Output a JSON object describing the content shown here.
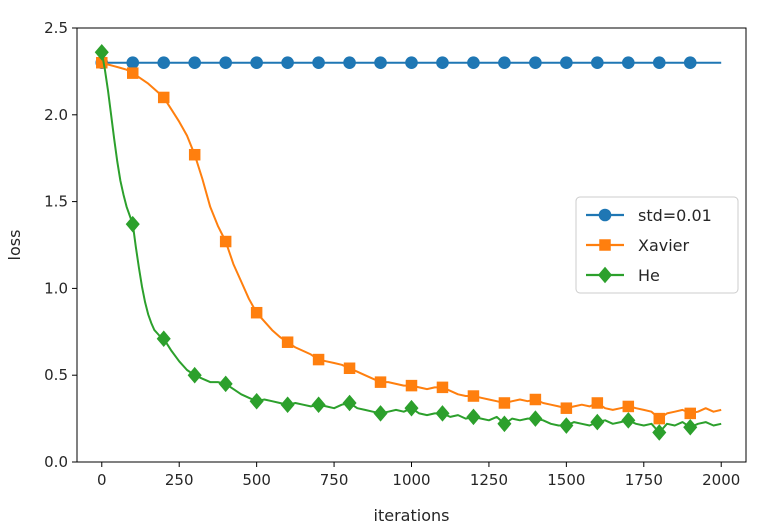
{
  "chart_data": {
    "type": "line",
    "title": "",
    "xlabel": "iterations",
    "ylabel": "loss",
    "xlim": [
      -80,
      2080
    ],
    "ylim": [
      0.0,
      2.5
    ],
    "xticks": [
      0,
      250,
      500,
      750,
      1000,
      1250,
      1500,
      1750,
      2000
    ],
    "xtick_labels": [
      "0",
      "250",
      "500",
      "750",
      "1000",
      "1250",
      "1500",
      "1750",
      "2000"
    ],
    "yticks": [
      0.0,
      0.5,
      1.0,
      1.5,
      2.0,
      2.5
    ],
    "ytick_labels": [
      "0.0",
      "0.5",
      "1.0",
      "1.5",
      "2.0",
      "2.5"
    ],
    "legend_position": "center-right",
    "series": [
      {
        "name": "std=0.01",
        "color": "#1f77b4",
        "marker": "circle",
        "marker_x": [
          0,
          100,
          200,
          300,
          400,
          500,
          600,
          700,
          800,
          900,
          1000,
          1100,
          1200,
          1300,
          1400,
          1500,
          1600,
          1700,
          1800,
          1900
        ],
        "marker_y": [
          2.3,
          2.3,
          2.3,
          2.3,
          2.3,
          2.3,
          2.3,
          2.3,
          2.3,
          2.3,
          2.3,
          2.3,
          2.3,
          2.3,
          2.3,
          2.3,
          2.3,
          2.3,
          2.3,
          2.3
        ],
        "x": [
          0,
          100,
          200,
          300,
          400,
          500,
          600,
          700,
          800,
          900,
          1000,
          1100,
          1200,
          1300,
          1400,
          1500,
          1600,
          1700,
          1800,
          1900,
          2000
        ],
        "y": [
          2.3,
          2.3,
          2.3,
          2.3,
          2.3,
          2.3,
          2.3,
          2.3,
          2.3,
          2.3,
          2.3,
          2.3,
          2.3,
          2.3,
          2.3,
          2.3,
          2.3,
          2.3,
          2.3,
          2.3,
          2.3
        ]
      },
      {
        "name": "Xavier",
        "color": "#ff7f0e",
        "marker": "square",
        "marker_x": [
          0,
          100,
          200,
          300,
          400,
          500,
          600,
          700,
          800,
          900,
          1000,
          1100,
          1200,
          1300,
          1400,
          1500,
          1600,
          1700,
          1800,
          1900
        ],
        "marker_y": [
          2.3,
          2.24,
          2.1,
          1.77,
          1.27,
          0.86,
          0.69,
          0.59,
          0.54,
          0.46,
          0.44,
          0.43,
          0.38,
          0.34,
          0.36,
          0.31,
          0.34,
          0.32,
          0.25,
          0.28
        ],
        "x": [
          0,
          20,
          40,
          60,
          80,
          100,
          125,
          150,
          175,
          200,
          225,
          250,
          275,
          300,
          325,
          350,
          375,
          400,
          425,
          450,
          475,
          500,
          525,
          550,
          575,
          600,
          625,
          650,
          675,
          700,
          725,
          750,
          775,
          800,
          825,
          850,
          875,
          900,
          925,
          950,
          975,
          1000,
          1025,
          1050,
          1075,
          1100,
          1125,
          1150,
          1175,
          1200,
          1225,
          1250,
          1275,
          1300,
          1325,
          1350,
          1375,
          1400,
          1425,
          1450,
          1475,
          1500,
          1525,
          1550,
          1575,
          1600,
          1625,
          1650,
          1675,
          1700,
          1725,
          1750,
          1775,
          1800,
          1825,
          1850,
          1875,
          1900,
          1925,
          1950,
          1975,
          2000
        ],
        "y": [
          2.3,
          2.29,
          2.28,
          2.27,
          2.26,
          2.24,
          2.21,
          2.18,
          2.14,
          2.1,
          2.03,
          1.96,
          1.88,
          1.77,
          1.63,
          1.47,
          1.36,
          1.27,
          1.14,
          1.04,
          0.94,
          0.86,
          0.81,
          0.76,
          0.72,
          0.69,
          0.66,
          0.64,
          0.62,
          0.59,
          0.58,
          0.57,
          0.56,
          0.54,
          0.52,
          0.5,
          0.48,
          0.46,
          0.46,
          0.45,
          0.44,
          0.44,
          0.43,
          0.42,
          0.43,
          0.43,
          0.41,
          0.39,
          0.38,
          0.38,
          0.37,
          0.36,
          0.35,
          0.34,
          0.35,
          0.36,
          0.35,
          0.36,
          0.34,
          0.33,
          0.32,
          0.31,
          0.32,
          0.33,
          0.32,
          0.34,
          0.31,
          0.3,
          0.31,
          0.32,
          0.31,
          0.3,
          0.29,
          0.25,
          0.28,
          0.29,
          0.3,
          0.28,
          0.29,
          0.31,
          0.29,
          0.3
        ]
      },
      {
        "name": "He",
        "color": "#2ca02c",
        "marker": "diamond",
        "marker_x": [
          0,
          100,
          200,
          300,
          400,
          500,
          600,
          700,
          800,
          900,
          1000,
          1100,
          1200,
          1300,
          1400,
          1500,
          1600,
          1700,
          1800,
          1900
        ],
        "marker_y": [
          2.36,
          1.37,
          0.71,
          0.5,
          0.45,
          0.35,
          0.33,
          0.33,
          0.34,
          0.28,
          0.31,
          0.28,
          0.26,
          0.22,
          0.25,
          0.21,
          0.23,
          0.24,
          0.17,
          0.2
        ],
        "x": [
          0,
          10,
          20,
          30,
          40,
          50,
          60,
          70,
          80,
          90,
          100,
          110,
          120,
          130,
          140,
          150,
          160,
          170,
          180,
          190,
          200,
          225,
          250,
          275,
          300,
          325,
          350,
          375,
          400,
          425,
          450,
          475,
          500,
          525,
          550,
          575,
          600,
          625,
          650,
          675,
          700,
          725,
          750,
          775,
          800,
          825,
          850,
          875,
          900,
          925,
          950,
          975,
          1000,
          1025,
          1050,
          1075,
          1100,
          1125,
          1150,
          1175,
          1200,
          1225,
          1250,
          1275,
          1300,
          1325,
          1350,
          1375,
          1400,
          1425,
          1450,
          1475,
          1500,
          1525,
          1550,
          1575,
          1600,
          1625,
          1650,
          1675,
          1700,
          1725,
          1750,
          1775,
          1800,
          1825,
          1850,
          1875,
          1900,
          1925,
          1950,
          1975,
          2000
        ],
        "y": [
          2.36,
          2.26,
          2.14,
          2.0,
          1.86,
          1.73,
          1.62,
          1.54,
          1.47,
          1.42,
          1.37,
          1.24,
          1.12,
          1.01,
          0.92,
          0.85,
          0.8,
          0.76,
          0.74,
          0.72,
          0.71,
          0.64,
          0.58,
          0.53,
          0.5,
          0.48,
          0.46,
          0.46,
          0.45,
          0.42,
          0.39,
          0.37,
          0.35,
          0.36,
          0.35,
          0.34,
          0.33,
          0.34,
          0.33,
          0.32,
          0.33,
          0.32,
          0.31,
          0.33,
          0.34,
          0.31,
          0.3,
          0.29,
          0.28,
          0.29,
          0.3,
          0.29,
          0.31,
          0.28,
          0.27,
          0.28,
          0.28,
          0.26,
          0.27,
          0.25,
          0.26,
          0.25,
          0.24,
          0.26,
          0.22,
          0.25,
          0.24,
          0.25,
          0.25,
          0.24,
          0.22,
          0.21,
          0.21,
          0.23,
          0.22,
          0.21,
          0.23,
          0.24,
          0.22,
          0.23,
          0.24,
          0.22,
          0.21,
          0.22,
          0.17,
          0.22,
          0.21,
          0.23,
          0.2,
          0.22,
          0.23,
          0.21,
          0.22
        ]
      }
    ]
  }
}
